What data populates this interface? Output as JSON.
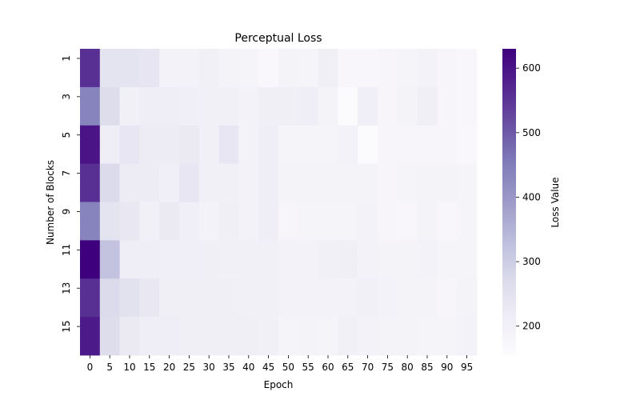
{
  "chart_data": {
    "type": "heatmap",
    "title": "Perceptual Loss",
    "xlabel": "Epoch",
    "ylabel": "Number of Blocks",
    "x_categories": [
      "0",
      "5",
      "10",
      "15",
      "20",
      "25",
      "30",
      "35",
      "40",
      "45",
      "50",
      "55",
      "60",
      "65",
      "70",
      "75",
      "80",
      "85",
      "90",
      "95"
    ],
    "y_categories": [
      "1",
      "2",
      "3",
      "4",
      "5",
      "6",
      "7",
      "8",
      "9",
      "10",
      "11",
      "12",
      "13",
      "14",
      "15",
      "16"
    ],
    "y_tick_labels_shown": [
      "1",
      "3",
      "5",
      "7",
      "9",
      "11",
      "13",
      "15"
    ],
    "colorbar": {
      "label": "Loss Value",
      "range": [
        155,
        630
      ],
      "ticks": [
        200,
        300,
        400,
        500,
        600
      ],
      "colormap": "Purples",
      "color_low": "#fcfbfd",
      "color_high": "#3f007d"
    },
    "values": [
      [
        560,
        245,
        245,
        240,
        195,
        195,
        200,
        190,
        185,
        170,
        190,
        185,
        205,
        175,
        175,
        180,
        185,
        195,
        180,
        175
      ],
      [
        560,
        245,
        245,
        240,
        195,
        195,
        200,
        190,
        185,
        170,
        190,
        185,
        205,
        175,
        175,
        180,
        185,
        195,
        180,
        175
      ],
      [
        440,
        265,
        200,
        215,
        215,
        210,
        200,
        200,
        195,
        205,
        205,
        215,
        190,
        160,
        210,
        180,
        190,
        205,
        180,
        175
      ],
      [
        440,
        265,
        200,
        215,
        215,
        210,
        200,
        200,
        195,
        205,
        205,
        215,
        190,
        160,
        210,
        180,
        190,
        205,
        180,
        175
      ],
      [
        600,
        215,
        235,
        220,
        220,
        225,
        200,
        235,
        195,
        215,
        185,
        185,
        185,
        195,
        160,
        180,
        180,
        180,
        180,
        170
      ],
      [
        600,
        215,
        235,
        220,
        220,
        225,
        200,
        235,
        195,
        215,
        185,
        185,
        185,
        195,
        160,
        180,
        180,
        180,
        180,
        170
      ],
      [
        560,
        270,
        220,
        220,
        210,
        235,
        200,
        200,
        195,
        215,
        190,
        190,
        190,
        190,
        190,
        180,
        185,
        190,
        190,
        185
      ],
      [
        560,
        270,
        220,
        220,
        210,
        235,
        200,
        200,
        195,
        215,
        190,
        190,
        190,
        190,
        190,
        180,
        185,
        190,
        190,
        185
      ],
      [
        440,
        245,
        230,
        200,
        225,
        210,
        195,
        205,
        195,
        215,
        180,
        185,
        185,
        185,
        195,
        180,
        175,
        190,
        175,
        185
      ],
      [
        440,
        245,
        230,
        200,
        225,
        210,
        195,
        205,
        195,
        215,
        180,
        185,
        185,
        185,
        195,
        180,
        175,
        190,
        175,
        185
      ],
      [
        630,
        320,
        215,
        215,
        210,
        210,
        205,
        200,
        200,
        200,
        195,
        195,
        200,
        205,
        195,
        190,
        190,
        195,
        185,
        185
      ],
      [
        630,
        320,
        215,
        215,
        210,
        210,
        205,
        200,
        200,
        200,
        195,
        195,
        200,
        205,
        195,
        190,
        190,
        195,
        185,
        185
      ],
      [
        560,
        270,
        250,
        230,
        205,
        205,
        205,
        205,
        200,
        200,
        195,
        195,
        195,
        195,
        200,
        195,
        190,
        190,
        180,
        190
      ],
      [
        560,
        270,
        250,
        230,
        205,
        205,
        205,
        205,
        200,
        200,
        195,
        195,
        195,
        195,
        200,
        195,
        190,
        190,
        180,
        190
      ],
      [
        590,
        265,
        225,
        215,
        215,
        205,
        205,
        205,
        205,
        200,
        185,
        190,
        185,
        200,
        195,
        190,
        190,
        185,
        185,
        195
      ],
      [
        590,
        265,
        225,
        215,
        215,
        205,
        205,
        205,
        205,
        200,
        185,
        190,
        185,
        200,
        195,
        190,
        190,
        185,
        185,
        195
      ]
    ]
  }
}
